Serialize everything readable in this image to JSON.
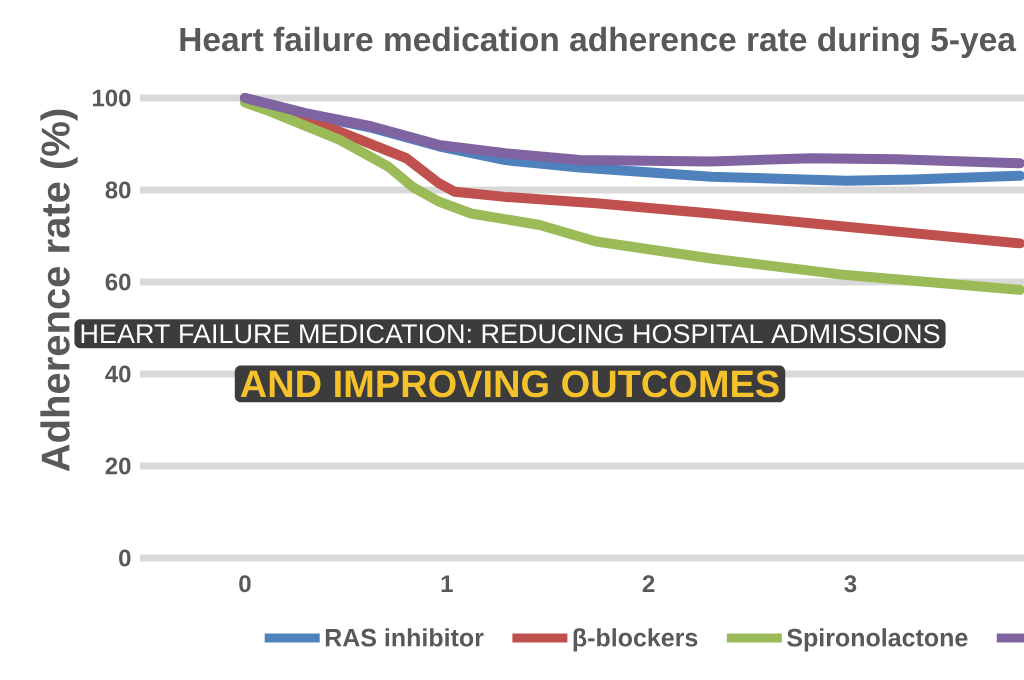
{
  "chart_data": {
    "type": "line",
    "title": "Heart failure medication adherence rate during 5-yea",
    "ylabel": "Adherence rate (%)",
    "annotations": [
      "HEART FAILURE MEDICATION: REDUCING HOSPITAL ADMISSIONS",
      "AND IMPROVING OUTCOMES"
    ],
    "xlim": [
      -0.52,
      3.86
    ],
    "xticks": [
      0,
      1,
      2,
      3
    ],
    "ylim": [
      0,
      100
    ],
    "yticks": [
      0,
      20,
      40,
      60,
      80,
      100
    ],
    "grid": "y",
    "legend": "bottom",
    "line_style": "solid",
    "series": [
      {
        "name": "RAS inhibitor",
        "color": "#4f81bd",
        "x": [
          0,
          0.3,
          0.63,
          0.96,
          1.29,
          1.66,
          2.31,
          2.98,
          3.31,
          3.84
        ],
        "values": [
          100,
          96.5,
          93.5,
          89.5,
          86.5,
          84.9,
          82.9,
          82,
          82.3,
          83.1
        ]
      },
      {
        "name": "β-blockers",
        "color": "#c0504d",
        "x": [
          0,
          0.13,
          0.47,
          0.8,
          0.96,
          1.04,
          1.29,
          1.74,
          2.31,
          2.98,
          3.84
        ],
        "values": [
          100,
          97.8,
          92.7,
          86.9,
          81.5,
          79.6,
          78.5,
          77.1,
          74.9,
          72,
          68.4
        ]
      },
      {
        "name": "Spironolactone",
        "color": "#9bbb59",
        "x": [
          0,
          0.13,
          0.47,
          0.71,
          0.83,
          0.96,
          1.12,
          1.46,
          1.74,
          2.31,
          2.98,
          3.84
        ],
        "values": [
          99,
          97,
          90.9,
          85.1,
          80.7,
          77.5,
          74.9,
          72.4,
          68.8,
          65.1,
          61.5,
          58.3
        ]
      },
      {
        "color": "#8064a2",
        "x": [
          0,
          0.3,
          0.63,
          0.96,
          1.29,
          1.66,
          2.31,
          2.81,
          3.23,
          3.84
        ],
        "values": [
          100,
          96.7,
          93.8,
          89.8,
          88,
          86.5,
          86.2,
          86.9,
          86.7,
          85.8
        ]
      }
    ]
  }
}
